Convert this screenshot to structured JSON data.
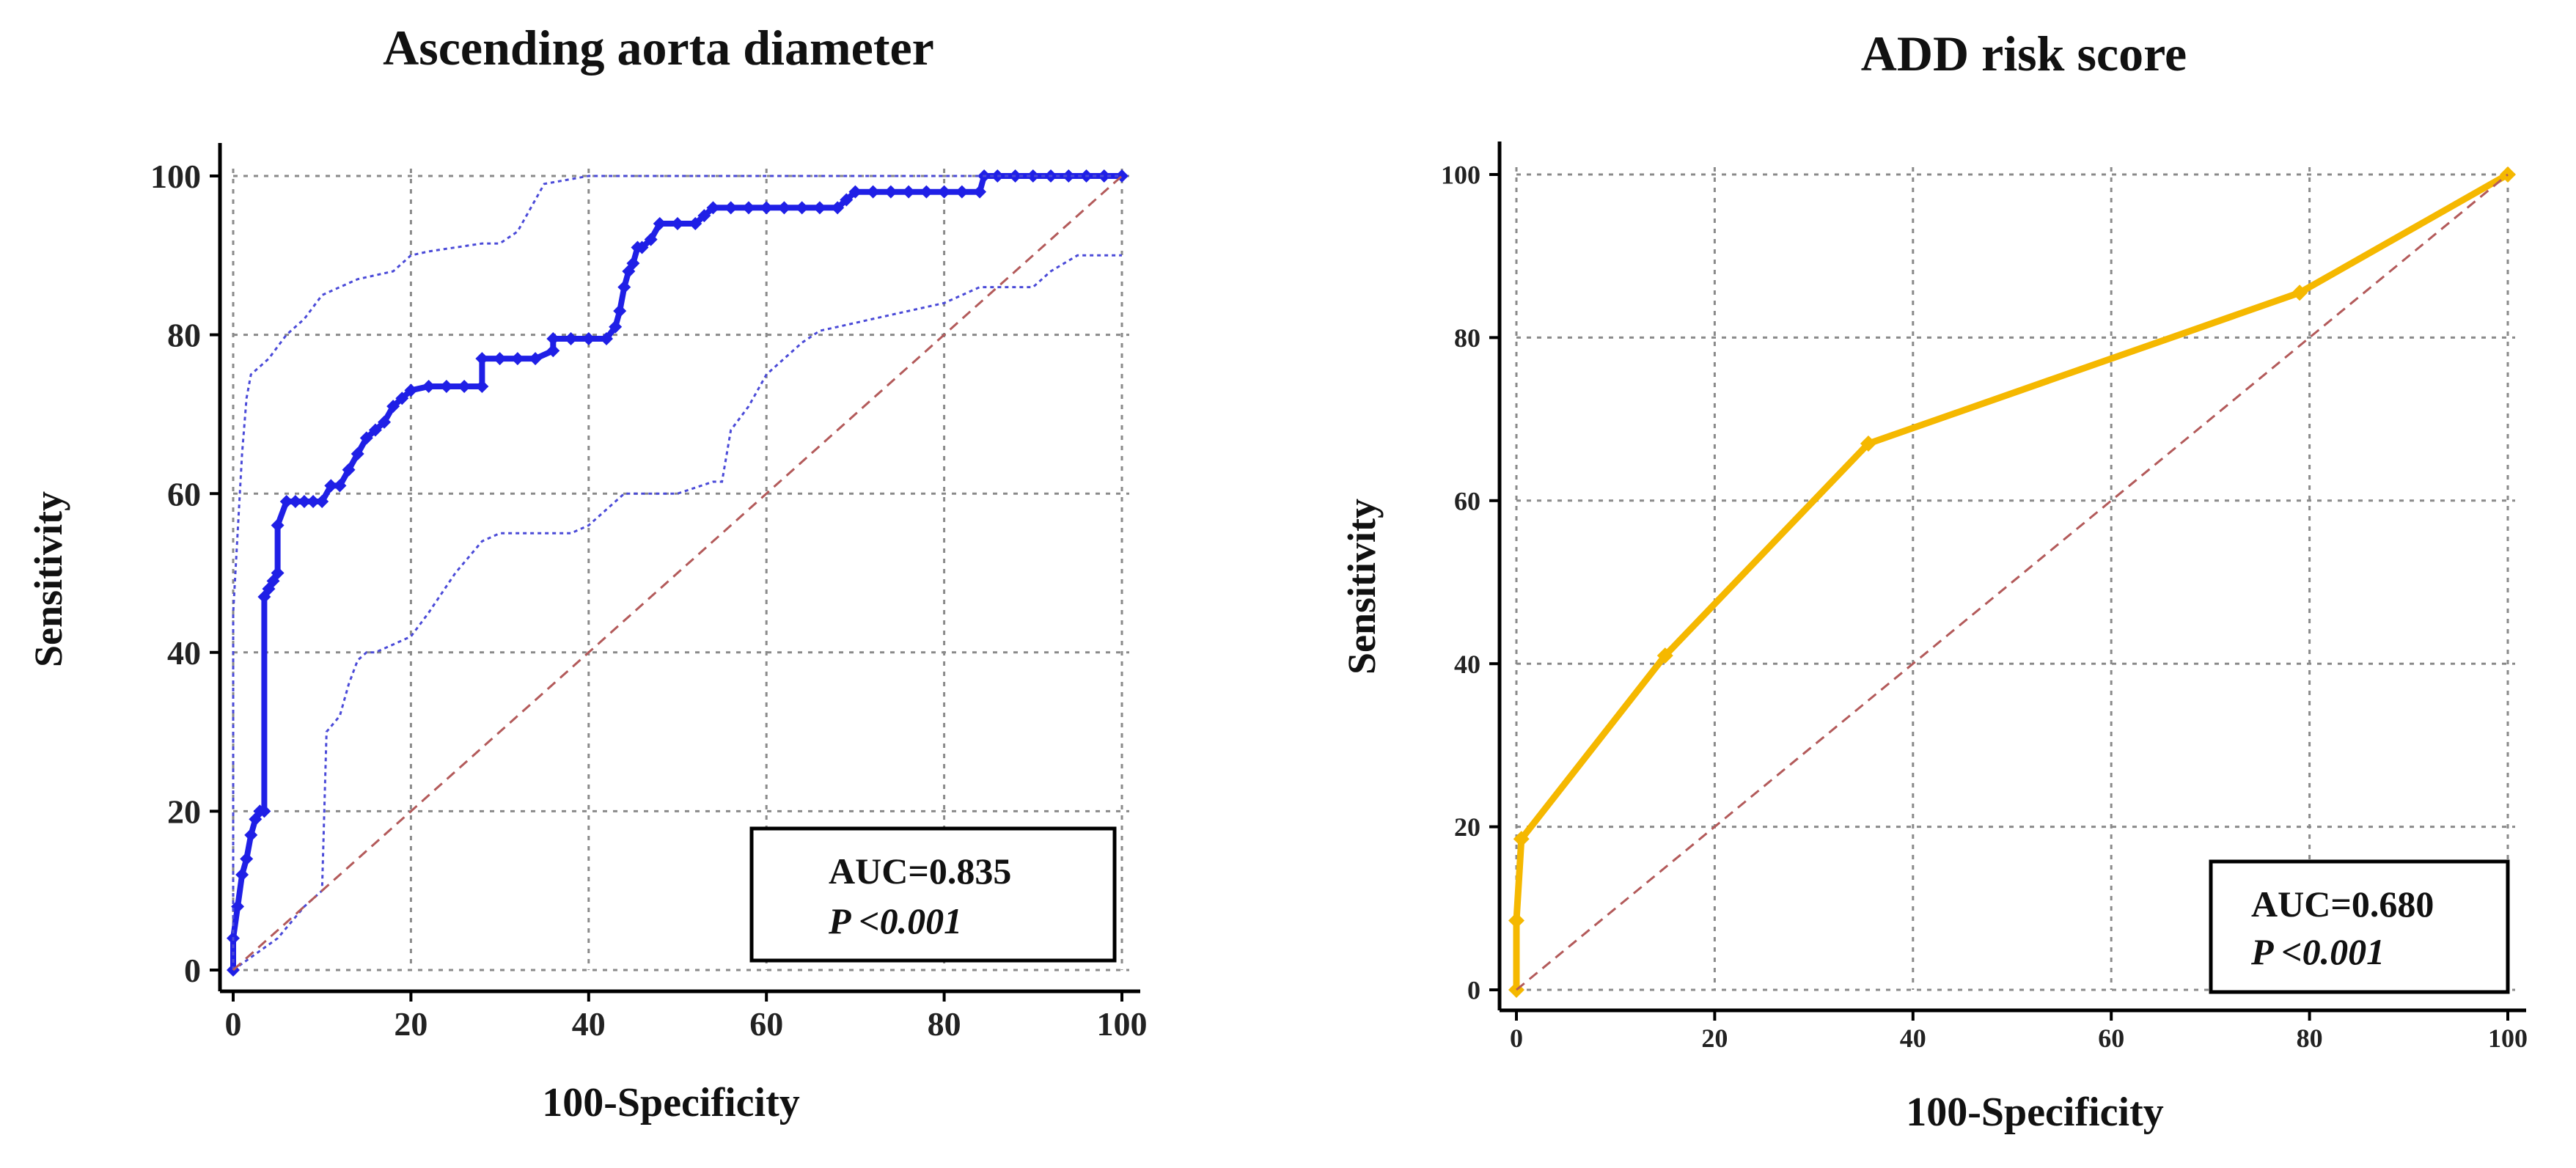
{
  "chart_data": [
    {
      "type": "line",
      "title": "Ascending aorta diameter",
      "xlabel": "100-Specificity",
      "ylabel": "Sensitivity",
      "xlim": [
        0,
        100
      ],
      "ylim": [
        0,
        100
      ],
      "xticks": [
        0,
        20,
        40,
        60,
        80,
        100
      ],
      "yticks": [
        0,
        20,
        40,
        60,
        80,
        100
      ],
      "grid": true,
      "annotation": {
        "auc": "AUC=0.835",
        "p": "P <0.001",
        "placement": "bottom-right"
      },
      "colors": {
        "roc": "#1f1fe6",
        "ci": "#4a4ad8",
        "reference": "#b35a5a"
      },
      "series": [
        {
          "name": "ROC curve",
          "style": "solid-markers",
          "x": [
            0,
            0,
            0.5,
            1,
            1.5,
            2,
            2.5,
            3,
            3.5,
            3.5,
            4,
            4.5,
            5,
            5,
            6,
            7,
            8,
            9,
            10,
            11,
            12,
            13,
            14,
            15,
            16,
            17,
            18,
            19,
            20,
            22,
            24,
            26,
            28,
            28,
            30,
            32,
            34,
            36,
            36,
            38,
            40,
            42,
            43,
            43.5,
            44,
            44.5,
            45,
            45.5,
            46,
            47,
            48,
            50,
            52,
            53,
            54,
            56,
            58,
            60,
            62,
            64,
            66,
            68,
            69,
            70,
            72,
            74,
            76,
            78,
            80,
            82,
            84,
            84.5,
            86,
            88,
            90,
            92,
            94,
            96,
            98,
            100
          ],
          "y": [
            0,
            4,
            8,
            12,
            14,
            17,
            19,
            20,
            20,
            47,
            48,
            49,
            50,
            56,
            59,
            59,
            59,
            59,
            59,
            61,
            61,
            63,
            65,
            67,
            68,
            69,
            71,
            72,
            73,
            73.5,
            73.5,
            73.5,
            73.5,
            77,
            77,
            77,
            77,
            78,
            79.5,
            79.5,
            79.5,
            79.5,
            81,
            83,
            86,
            88,
            89,
            91,
            91,
            92,
            94,
            94,
            94,
            95,
            96,
            96,
            96,
            96,
            96,
            96,
            96,
            96,
            97,
            98,
            98,
            98,
            98,
            98,
            98,
            98,
            98,
            100,
            100,
            100,
            100,
            100,
            100,
            100,
            100,
            100
          ]
        },
        {
          "name": "Upper 95% CI",
          "style": "dotted",
          "x": [
            0,
            0,
            1,
            1.5,
            2,
            4,
            6,
            8,
            10,
            12,
            14,
            16,
            18,
            20,
            22,
            25,
            28,
            30,
            32,
            35,
            40,
            50,
            60,
            70,
            80,
            90,
            100
          ],
          "y": [
            0,
            45,
            65,
            72,
            75,
            77,
            80,
            82,
            85,
            86,
            87,
            87.5,
            88,
            90,
            90.5,
            91,
            91.5,
            91.5,
            93,
            99,
            100,
            100,
            100,
            100,
            100,
            100,
            100
          ]
        },
        {
          "name": "Lower 95% CI",
          "style": "dotted",
          "x": [
            0,
            5,
            8,
            10,
            10.5,
            12,
            13,
            14,
            15,
            16,
            18,
            20,
            22,
            25,
            28,
            30,
            32,
            35,
            38,
            40,
            42,
            44,
            45,
            50,
            54,
            55,
            56,
            58,
            60,
            62,
            64,
            66,
            68,
            70,
            72,
            74,
            76,
            78,
            80,
            82,
            84,
            86,
            88,
            90,
            92,
            95,
            97,
            100
          ],
          "y": [
            0,
            4,
            8,
            10,
            30,
            32,
            36,
            39,
            40,
            40,
            41,
            42,
            45,
            50,
            54,
            55,
            55,
            55,
            55,
            56,
            58,
            60,
            60,
            60,
            61.5,
            61.5,
            68,
            71,
            75,
            77,
            79,
            80.5,
            81,
            81.5,
            82,
            82.5,
            83,
            83.5,
            84,
            85,
            86,
            86,
            86,
            86,
            88,
            90,
            90,
            90
          ]
        },
        {
          "name": "Reference",
          "style": "dashed",
          "x": [
            0,
            100
          ],
          "y": [
            0,
            100
          ]
        }
      ]
    },
    {
      "type": "line",
      "title": "ADD risk score",
      "xlabel": "100-Specificity",
      "ylabel": "Sensitivity",
      "xlim": [
        0,
        100
      ],
      "ylim": [
        0,
        100
      ],
      "xticks": [
        0,
        20,
        40,
        60,
        80,
        100
      ],
      "yticks": [
        0,
        20,
        40,
        60,
        80,
        100
      ],
      "grid": true,
      "annotation": {
        "auc": "AUC=0.680",
        "p": "P <0.001",
        "placement": "bottom-right"
      },
      "colors": {
        "roc": "#f5b800",
        "reference": "#b35a5a"
      },
      "series": [
        {
          "name": "ROC curve",
          "style": "solid-markers",
          "x": [
            0,
            0,
            0.5,
            15,
            35.5,
            79,
            100
          ],
          "y": [
            0,
            8.5,
            18.5,
            41,
            67,
            85.5,
            100
          ]
        },
        {
          "name": "Reference",
          "style": "dashed",
          "x": [
            0,
            100
          ],
          "y": [
            0,
            100
          ]
        }
      ]
    }
  ]
}
